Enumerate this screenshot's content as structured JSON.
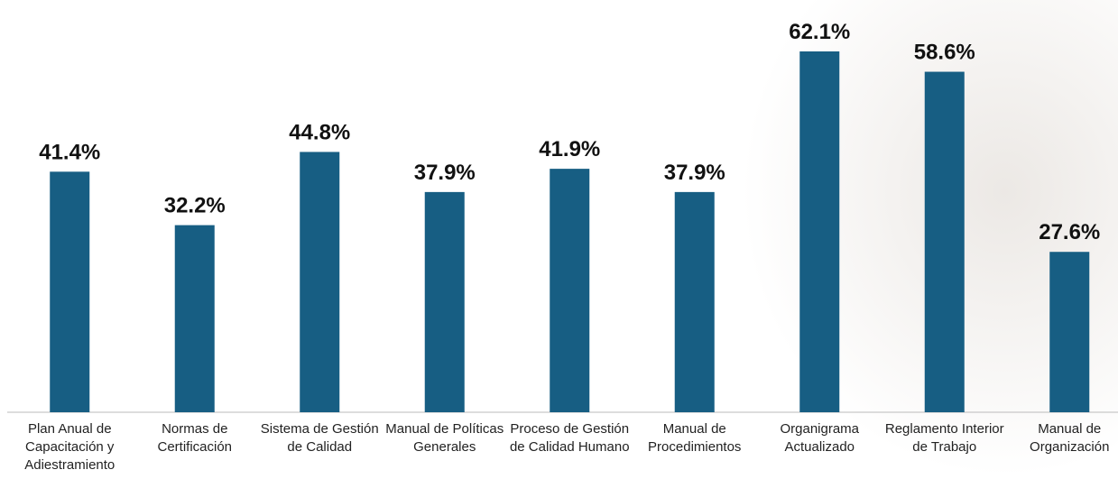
{
  "chart_data": {
    "type": "bar",
    "categories": [
      "Plan Anual de Capacitación y Adiestramiento",
      "Normas de Certificación",
      "Sistema de Gestión de Calidad",
      "Manual de Políticas Generales",
      "Proceso de Gestión de Calidad Humano",
      "Manual de Procedimientos",
      "Organigrama Actualizado",
      "Reglamento Interior de Trabajo",
      "Manual de Organización"
    ],
    "values": [
      41.4,
      32.2,
      44.8,
      37.9,
      41.9,
      37.9,
      62.1,
      58.6,
      27.6
    ],
    "value_labels": [
      "41.4%",
      "32.2%",
      "44.8%",
      "37.9%",
      "41.9%",
      "37.9%",
      "62.1%",
      "58.6%",
      "27.6%"
    ],
    "color": "#175e83"
  }
}
